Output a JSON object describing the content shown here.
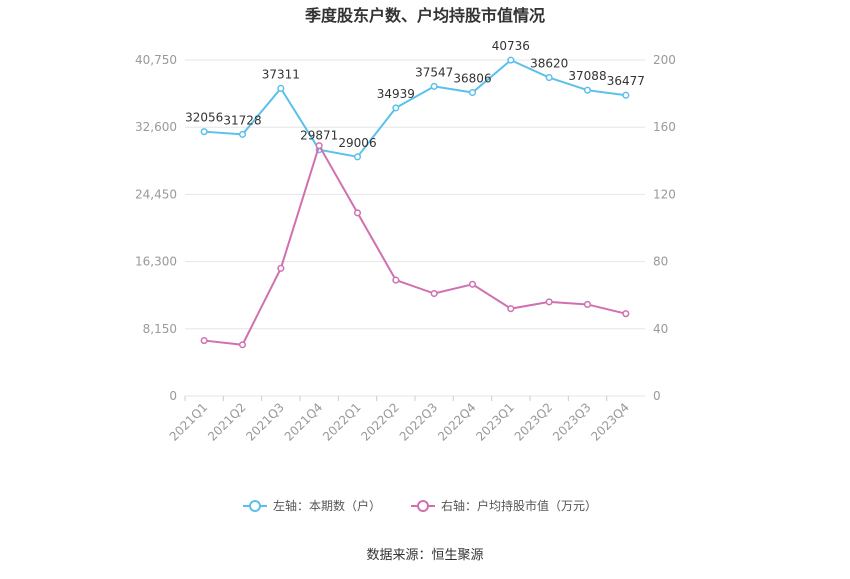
{
  "chart_data": {
    "type": "line",
    "title": "季度股东户数、户均持股市值情况",
    "categories": [
      "2021Q1",
      "2021Q2",
      "2021Q3",
      "2021Q4",
      "2022Q1",
      "2022Q2",
      "2022Q3",
      "2022Q4",
      "2023Q1",
      "2023Q2",
      "2023Q3",
      "2023Q4"
    ],
    "left_axis": {
      "ticks": [
        "0",
        "8,150",
        "16,300",
        "24,450",
        "32,600",
        "40,750"
      ],
      "min": 0,
      "max": 40750
    },
    "right_axis": {
      "ticks": [
        "0",
        "40",
        "80",
        "120",
        "160",
        "200"
      ],
      "min": 0,
      "max": 200
    },
    "grid": true,
    "legend_position": "bottom",
    "series": [
      {
        "name": "左轴：本期数（户）",
        "axis": "left",
        "color": "#5bc0eb",
        "values": [
          32056,
          31728,
          37311,
          29871,
          29006,
          34939,
          37547,
          36806,
          40736,
          38620,
          37088,
          36477
        ],
        "labels": [
          "32056",
          "31728",
          "37311",
          "29871",
          "29006",
          "34939",
          "37547",
          "36806",
          "40736",
          "38620",
          "37088",
          "36477"
        ]
      },
      {
        "name": "右轴：户均持股市值（万元）",
        "axis": "right",
        "color": "#d070b0",
        "values": [
          33.0,
          30.5,
          76.0,
          149.0,
          109.0,
          69.0,
          61.0,
          66.5,
          52.0,
          56.0,
          54.5,
          49.0
        ]
      }
    ]
  },
  "source_text": "数据来源：恒生聚源"
}
